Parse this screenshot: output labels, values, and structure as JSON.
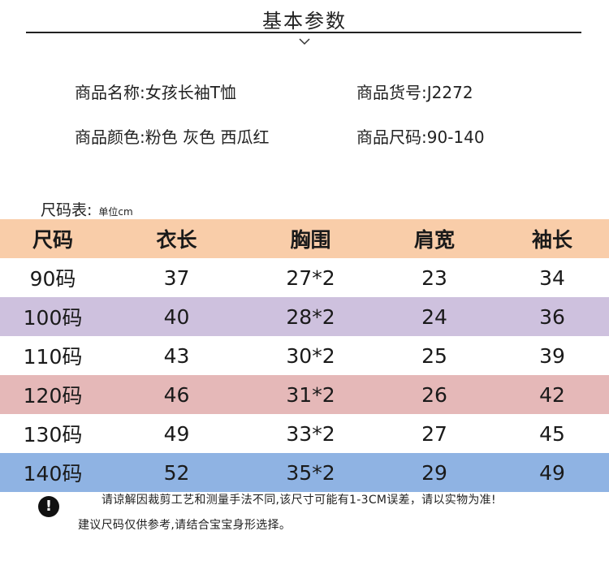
{
  "header": {
    "title": "基本参数"
  },
  "info": {
    "name_label": "商品名称:",
    "name_value": "女孩长袖T恤",
    "sku_label": "商品货号:",
    "sku_value": "J2272",
    "color_label": "商品颜色:",
    "color_value": "粉色 灰色 西瓜红",
    "size_label": "商品尺码:",
    "size_value": "90-140"
  },
  "size_chart": {
    "caption": "尺码表:",
    "unit": "单位cm",
    "header_color": "#f9cda9",
    "columns": [
      "尺码",
      "衣长",
      "胸围",
      "肩宽",
      "袖长"
    ],
    "rows": [
      {
        "cells": [
          "90码",
          "37",
          "27*2",
          "23",
          "34"
        ],
        "color": "#ffffff"
      },
      {
        "cells": [
          "100码",
          "40",
          "28*2",
          "24",
          "36"
        ],
        "color": "#cec1de"
      },
      {
        "cells": [
          "110码",
          "43",
          "30*2",
          "25",
          "39"
        ],
        "color": "#ffffff"
      },
      {
        "cells": [
          "120码",
          "46",
          "31*2",
          "26",
          "42"
        ],
        "color": "#e5b8b8"
      },
      {
        "cells": [
          "130码",
          "49",
          "33*2",
          "27",
          "45"
        ],
        "color": "#ffffff"
      },
      {
        "cells": [
          "140码",
          "52",
          "35*2",
          "29",
          "49"
        ],
        "color": "#8fb3e3"
      }
    ]
  },
  "notes": {
    "icon": "exclamation-icon",
    "line1": "请谅解因裁剪工艺和测量手法不同,该尺寸可能有1-3CM误差，请以实物为准!",
    "line2": "建议尺码仅供参考,请结合宝宝身形选择。"
  }
}
